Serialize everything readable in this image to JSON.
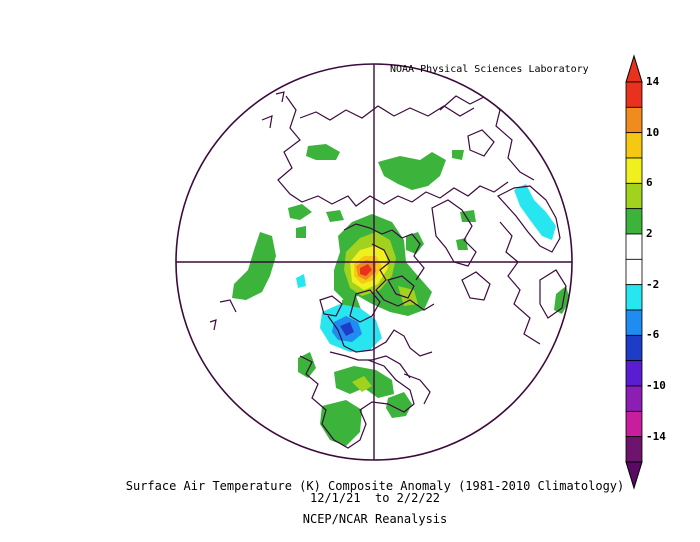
{
  "credit": "NOAA Physical Sciences Laboratory",
  "title_line1": "Surface Air Temperature (K) Composite Anomaly (1981-2010 Climatology)",
  "title_line2": "12/1/21  to 2/2/22",
  "title_line3": "NCEP/NCAR Reanalysis",
  "colorbar": {
    "ticks": [
      "14",
      "10",
      "6",
      "2",
      "-2",
      "-6",
      "-10",
      "-14"
    ],
    "colors": [
      "#e8321e",
      "#f08c1e",
      "#f5c814",
      "#f0f01e",
      "#a0d21e",
      "#3cb43c",
      "#ffffff",
      "#ffffff",
      "#28e6f0",
      "#1e8cf0",
      "#1e3cc8",
      "#5a1ed2",
      "#8c1eb4",
      "#c81e9e",
      "#6e146e"
    ],
    "top_color": "#e8321e",
    "bottom_color": "#5a0a64"
  }
}
